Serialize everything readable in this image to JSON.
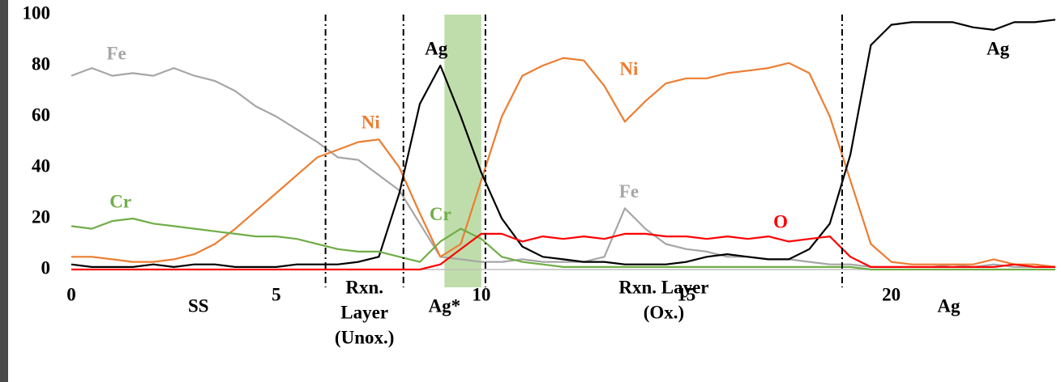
{
  "chart_data": {
    "type": "line",
    "x": [
      0,
      0.5,
      1,
      1.5,
      2,
      2.5,
      3,
      3.5,
      4,
      4.5,
      5,
      5.5,
      6,
      6.5,
      7,
      7.5,
      8,
      8.5,
      9,
      9.5,
      10,
      10.5,
      11,
      11.5,
      12,
      12.5,
      13,
      13.5,
      14,
      14.5,
      15,
      15.5,
      16,
      16.5,
      17,
      17.5,
      18,
      18.5,
      19,
      19.5,
      20,
      20.5,
      21,
      21.5,
      22,
      22.5,
      23,
      23.5,
      24
    ],
    "series": [
      {
        "name": "Fe",
        "color": "#a6a6a6",
        "labels": [
          {
            "x": 1.1,
            "y": 84
          },
          {
            "x": 13.6,
            "y": 30
          }
        ],
        "values": [
          76,
          79,
          76,
          77,
          76,
          79,
          76,
          74,
          70,
          64,
          60,
          55,
          50,
          44,
          43,
          37,
          31,
          18,
          5,
          4,
          3,
          3,
          4,
          3,
          3,
          3,
          5,
          24,
          16,
          10,
          8,
          7,
          5,
          5,
          4,
          4,
          3,
          2,
          2,
          1,
          1,
          1,
          1,
          2,
          1,
          2,
          1,
          1,
          1
        ]
      },
      {
        "name": "Ni",
        "color": "#ed7d31",
        "labels": [
          {
            "x": 7.3,
            "y": 57
          },
          {
            "x": 13.6,
            "y": 78
          }
        ],
        "values": [
          5,
          5,
          4,
          3,
          3,
          4,
          6,
          10,
          16,
          23,
          30,
          37,
          44,
          47,
          50,
          51,
          40,
          22,
          5,
          10,
          35,
          60,
          76,
          80,
          83,
          82,
          72,
          58,
          66,
          73,
          75,
          75,
          77,
          78,
          79,
          81,
          77,
          60,
          35,
          10,
          3,
          2,
          2,
          2,
          2,
          4,
          2,
          2,
          1
        ]
      },
      {
        "name": "Ag",
        "color": "#000000",
        "labels": [
          {
            "x": 8.9,
            "y": 86
          },
          {
            "x": 22.6,
            "y": 86
          }
        ],
        "values": [
          2,
          1,
          1,
          1,
          2,
          1,
          2,
          2,
          1,
          1,
          1,
          2,
          2,
          2,
          3,
          5,
          30,
          65,
          80,
          60,
          38,
          20,
          9,
          5,
          4,
          3,
          3,
          2,
          2,
          2,
          3,
          5,
          6,
          5,
          4,
          4,
          8,
          18,
          45,
          88,
          96,
          97,
          97,
          97,
          95,
          94,
          97,
          97,
          98
        ]
      },
      {
        "name": "Cr",
        "color": "#70ad47",
        "labels": [
          {
            "x": 1.2,
            "y": 26
          },
          {
            "x": 9.0,
            "y": 21
          }
        ],
        "values": [
          17,
          16,
          19,
          20,
          18,
          17,
          16,
          15,
          14,
          13,
          13,
          12,
          10,
          8,
          7,
          7,
          5,
          3,
          11,
          16,
          12,
          5,
          3,
          2,
          1,
          1,
          1,
          1,
          1,
          1,
          1,
          1,
          1,
          1,
          1,
          1,
          1,
          1,
          1,
          0,
          0,
          0,
          0,
          0,
          0,
          0,
          0,
          0,
          0
        ]
      },
      {
        "name": "O",
        "color": "#ff0000",
        "labels": [
          {
            "x": 17.3,
            "y": 18
          }
        ],
        "values": [
          0,
          0,
          0,
          0,
          0,
          0,
          0,
          0,
          0,
          0,
          0,
          0,
          0,
          0,
          0,
          0,
          0,
          0,
          2,
          8,
          14,
          14,
          11,
          13,
          12,
          13,
          12,
          14,
          14,
          13,
          13,
          12,
          13,
          12,
          13,
          11,
          12,
          13,
          5,
          1,
          1,
          1,
          1,
          1,
          1,
          1,
          2,
          1,
          1
        ]
      }
    ],
    "xlim": [
      0,
      24
    ],
    "xticks": [
      0,
      5,
      10,
      15,
      20
    ],
    "ylim": [
      0,
      100
    ],
    "yticks": [
      0,
      20,
      40,
      60,
      80,
      100
    ],
    "boundaries": [
      6.2,
      8.1,
      10.1,
      18.8
    ],
    "shaded_region": {
      "x": [
        9.1,
        10.0
      ],
      "color": "#a9d18e"
    },
    "regions": [
      {
        "label": [
          "SS"
        ]
      },
      {
        "label": [
          "Rxn.",
          "Layer",
          "(Unox.)"
        ]
      },
      {
        "label": [
          "Ag*"
        ]
      },
      {
        "label": [
          "Rxn. Layer",
          "(Ox.)"
        ]
      },
      {
        "label": [
          "Ag"
        ]
      }
    ]
  }
}
